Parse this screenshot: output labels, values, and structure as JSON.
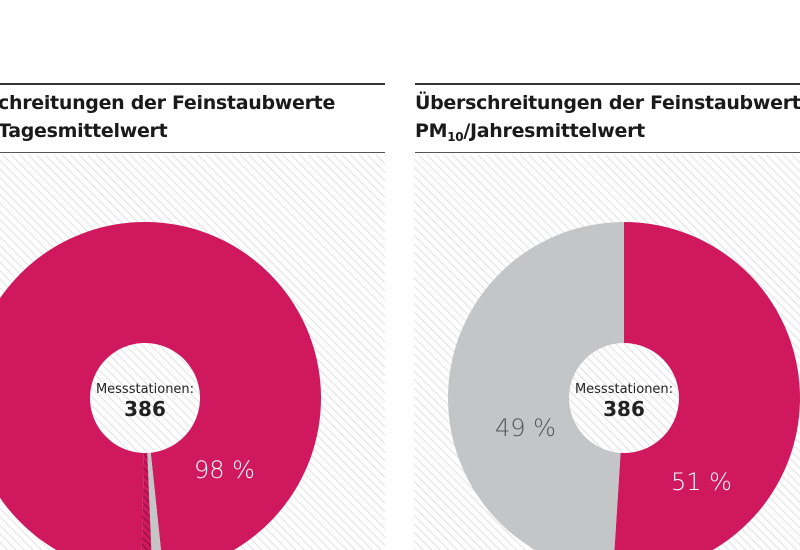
{
  "colors": {
    "exceed": "#cf185d",
    "below": "#c4c5c7",
    "hatch": "#d8d8d8",
    "hatch_wedge": "#8a1040"
  },
  "chart_data": [
    {
      "type": "pie",
      "title_line1": "chreitungen der Feinstaubwerte",
      "title_line2": "Tagesmittelwert",
      "center_label": "Messstationen:",
      "center_value": "386",
      "slices": [
        {
          "value": 98,
          "label": "98 %",
          "color": "#cf185d"
        },
        {
          "value": 1,
          "label": "",
          "color": "#c4c5c7"
        },
        {
          "value": 1,
          "label": "",
          "color": "hatched"
        }
      ]
    },
    {
      "type": "pie",
      "title_line1": "Überschreitungen der Feinstaubwerte",
      "title_pm": "PM",
      "title_sub": "10",
      "title_line2": "/Jahresmittelwert",
      "center_label": "Messstationen:",
      "center_value": "386",
      "slices": [
        {
          "value": 51,
          "label": "51 %",
          "color": "#cf185d"
        },
        {
          "value": 49,
          "label": "49 %",
          "color": "#c4c5c7"
        }
      ]
    }
  ]
}
